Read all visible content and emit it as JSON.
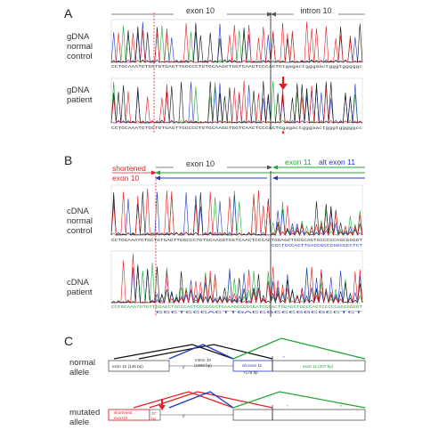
{
  "panels": {
    "A": {
      "letter": "A",
      "exon_label": "exon 10",
      "intron_label": "intron 10",
      "rows": [
        {
          "label": [
            "gDNA",
            "normal",
            "control"
          ],
          "seq": "CCTGCAAATGTGCTGTGAGTTGGCCCTGTGCAAGGTGGTCAACTCCCACTGtgagactgggaactgggtgggggc"
        },
        {
          "label": [
            "gDNA",
            "patient"
          ],
          "seq": "CCTGCAAATGTGCTGTGAGTTGGCCCTGTGCAAGGTGGTCAACTCCCACTGgagactgggaactgggtgggggcc"
        }
      ]
    },
    "B": {
      "letter": "B",
      "exon_label": "exon 10",
      "shortened_label": [
        "shortened",
        "exon 10"
      ],
      "exon11_label": "exon 11",
      "alt_exon11_label": "alt exon 11",
      "rows": [
        {
          "label": [
            "cDNA",
            "normal",
            "control"
          ],
          "seq": "CCTGCAAATGTGCTGTGAGTTGGCCCTGTGCAAGGTGGTCAACTCCCACTGGAGCTGCCCAGTGCCCCCAGCGGGGT",
          "seq2": "CCCTCCCACTTGACCGCCCGGCGCCTCT"
        },
        {
          "label": [
            "cDNA",
            "patient"
          ],
          "seq": "CCTGCAAATGTGTTGGAGCTGCCCAGTCCCCGGCTGAAAGGCGGCGATCCCACTGGAGCTGCCCAGTCCCCCAGCGGGGT",
          "seq2": "CCCTCCCACTTGACCGCCCGGCGCCTCT"
        }
      ]
    },
    "C": {
      "letter": "C",
      "normal_label": [
        "normal",
        "allele"
      ],
      "mutated_label": [
        "mutated",
        "allele"
      ],
      "exon10_box": "exon 10 (146 bp)",
      "intron_label": [
        "intron 10",
        "(1909 bp)"
      ],
      "alt_exon_label": [
        "alt exon 11",
        "+176 bp"
      ],
      "exon11_box": "exon 11 (207 bp)",
      "shortened_box": [
        "shortened",
        "exon10"
      ],
      "bp_note": [
        "37",
        "bp"
      ],
      "asterisk": "*"
    }
  },
  "colors": {
    "red": "#e31f26",
    "green": "#21a836",
    "blue": "#2336c8",
    "black": "#111111",
    "trace_A": "#21a836",
    "trace_C": "#2336c8",
    "trace_G": "#111111",
    "trace_T": "#e31f26"
  }
}
